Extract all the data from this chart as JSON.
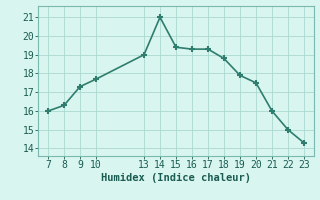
{
  "x": [
    7,
    8,
    9,
    10,
    13,
    14,
    15,
    16,
    17,
    18,
    19,
    20,
    21,
    22,
    23
  ],
  "y": [
    16.0,
    16.3,
    17.3,
    17.7,
    19.0,
    21.0,
    19.4,
    19.3,
    19.3,
    18.8,
    17.9,
    17.5,
    16.0,
    15.0,
    14.3
  ],
  "line_color": "#2e7d6e",
  "marker": "+",
  "marker_size": 5,
  "line_width": 1.2,
  "bg_color": "#d8f5ef",
  "grid_color": "#aad9d0",
  "xlabel": "Humidex (Indice chaleur)",
  "xlabel_fontsize": 7.5,
  "xlabel_color": "#1a5c52",
  "xlabel_fontweight": "bold",
  "xticks": [
    7,
    8,
    9,
    10,
    13,
    14,
    15,
    16,
    17,
    18,
    19,
    20,
    21,
    22,
    23
  ],
  "yticks": [
    14,
    15,
    16,
    17,
    18,
    19,
    20,
    21
  ],
  "ylim": [
    13.6,
    21.6
  ],
  "xlim": [
    6.4,
    23.6
  ],
  "tick_fontsize": 7,
  "tick_color": "#1a5c52",
  "spine_color": "#7ab8b0"
}
